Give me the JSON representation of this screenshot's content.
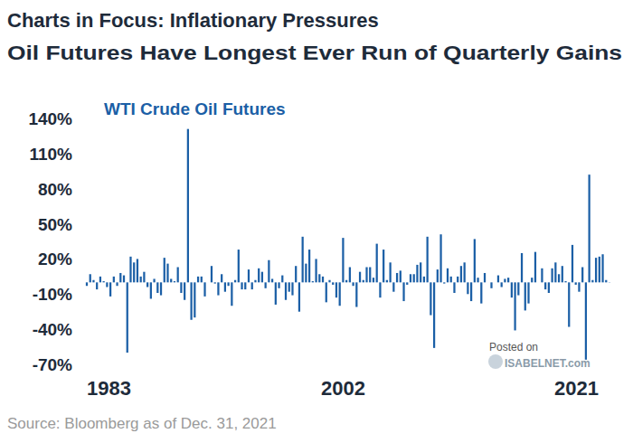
{
  "chart_data": {
    "type": "bar",
    "title": "Charts in Focus: Inflationary Pressures",
    "subtitle": "Oil Futures Have Longest Ever Run of Quarterly Gains",
    "source": "Source: Bloomberg as of Dec. 31, 2021",
    "annotations": [
      "Posted on",
      "ISABELNET.com"
    ],
    "categories": [
      "1983",
      null,
      null,
      null,
      null,
      null,
      null,
      null,
      null,
      null,
      null,
      null,
      null,
      null,
      null,
      null,
      null,
      null,
      null,
      null,
      null,
      null,
      null,
      null,
      null,
      null,
      null,
      null,
      null,
      null,
      null,
      null,
      null,
      null,
      null,
      null,
      null,
      null,
      null,
      null,
      null,
      null,
      null,
      null,
      null,
      null,
      null,
      null,
      null,
      null,
      null,
      null,
      null,
      null,
      null,
      null,
      null,
      null,
      null,
      null,
      null,
      null,
      null,
      null,
      null,
      null,
      null,
      null,
      null,
      null,
      null,
      null,
      null,
      null,
      null,
      null,
      "2002",
      null,
      null,
      null,
      null,
      null,
      null,
      null,
      null,
      null,
      null,
      null,
      null,
      null,
      null,
      null,
      null,
      null,
      null,
      null,
      null,
      null,
      null,
      null,
      null,
      null,
      null,
      null,
      null,
      null,
      null,
      null,
      null,
      null,
      null,
      null,
      null,
      null,
      null,
      null,
      null,
      null,
      null,
      null,
      null,
      null,
      null,
      null,
      null,
      null,
      null,
      null,
      null,
      null,
      null,
      null,
      null,
      null,
      null,
      null,
      null,
      null,
      null,
      null,
      null,
      null,
      null,
      null,
      null,
      null,
      null,
      null,
      null,
      null,
      null,
      null,
      null,
      null,
      null,
      "2021"
    ],
    "series": [
      {
        "name": "WTI Crude Oil Futures",
        "color": "#1b5fa6",
        "values": [
          -3,
          7,
          2,
          -6,
          5,
          1,
          -4,
          -12,
          5,
          -3,
          8,
          6,
          -60,
          22,
          17,
          20,
          5,
          9,
          -4,
          -14,
          3,
          -9,
          -11,
          21,
          16,
          3,
          1,
          13,
          -9,
          -15,
          131,
          -32,
          -30,
          5,
          5,
          -12,
          0,
          14,
          -1,
          -11,
          7,
          -8,
          -3,
          -20,
          2,
          28,
          -6,
          -6,
          11,
          -6,
          2,
          12,
          9,
          -5,
          19,
          3,
          -19,
          -5,
          6,
          -15,
          -8,
          -11,
          14,
          -25,
          39,
          16,
          28,
          1,
          20,
          7,
          5,
          -17,
          2,
          -2,
          -13,
          -20,
          38,
          2,
          13,
          -3,
          -21,
          9,
          2,
          13,
          13,
          4,
          33,
          -13,
          28,
          2,
          17,
          -8,
          8,
          10,
          -16,
          -2,
          7,
          7,
          15,
          17,
          5,
          39,
          -28,
          -56,
          11,
          41,
          -1,
          12,
          5,
          -9,
          5,
          14,
          17,
          -10,
          -16,
          37,
          4,
          -18,
          8,
          0,
          -5,
          0,
          6,
          -4,
          3,
          4,
          -13,
          -41,
          -11,
          25,
          -24,
          -18,
          4,
          26,
          0,
          12,
          -6,
          -9,
          12,
          17,
          7,
          14,
          1,
          -38,
          32,
          -2,
          -8,
          13,
          -66,
          92,
          2,
          21,
          22,
          24,
          2,
          0.2
        ]
      }
    ],
    "ylim": [
      -70,
      140
    ],
    "yticks": [
      {
        "value": 140,
        "label": "140%"
      },
      {
        "value": 110,
        "label": "110%"
      },
      {
        "value": 80,
        "label": "80%"
      },
      {
        "value": 50,
        "label": "50%"
      },
      {
        "value": 20,
        "label": "20%"
      },
      {
        "value": -10,
        "label": "-10%"
      },
      {
        "value": -40,
        "label": "-40%"
      },
      {
        "value": -70,
        "label": "-70%"
      }
    ],
    "grid": false
  }
}
